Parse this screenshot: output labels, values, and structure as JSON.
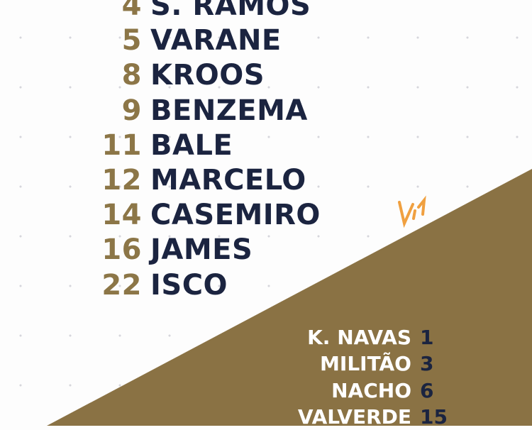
{
  "colors": {
    "navy": "#1b2440",
    "gold": "#8a7244",
    "accent_orange": "#f0a040"
  },
  "starters": [
    {
      "number": "4",
      "name": "S. RAMOS"
    },
    {
      "number": "5",
      "name": "VARANE"
    },
    {
      "number": "8",
      "name": "KROOS"
    },
    {
      "number": "9",
      "name": "BENZEMA"
    },
    {
      "number": "11",
      "name": "BALE"
    },
    {
      "number": "12",
      "name": "MARCELO"
    },
    {
      "number": "14",
      "name": "CASEMIRO"
    },
    {
      "number": "16",
      "name": "JAMES"
    },
    {
      "number": "22",
      "name": "ISCO"
    }
  ],
  "substitutes": [
    {
      "name": "K. NAVAS",
      "number": "1"
    },
    {
      "name": "MILITÃO",
      "number": "3"
    },
    {
      "name": "NACHO",
      "number": "6"
    },
    {
      "name": "VALVERDE",
      "number": "15"
    }
  ]
}
